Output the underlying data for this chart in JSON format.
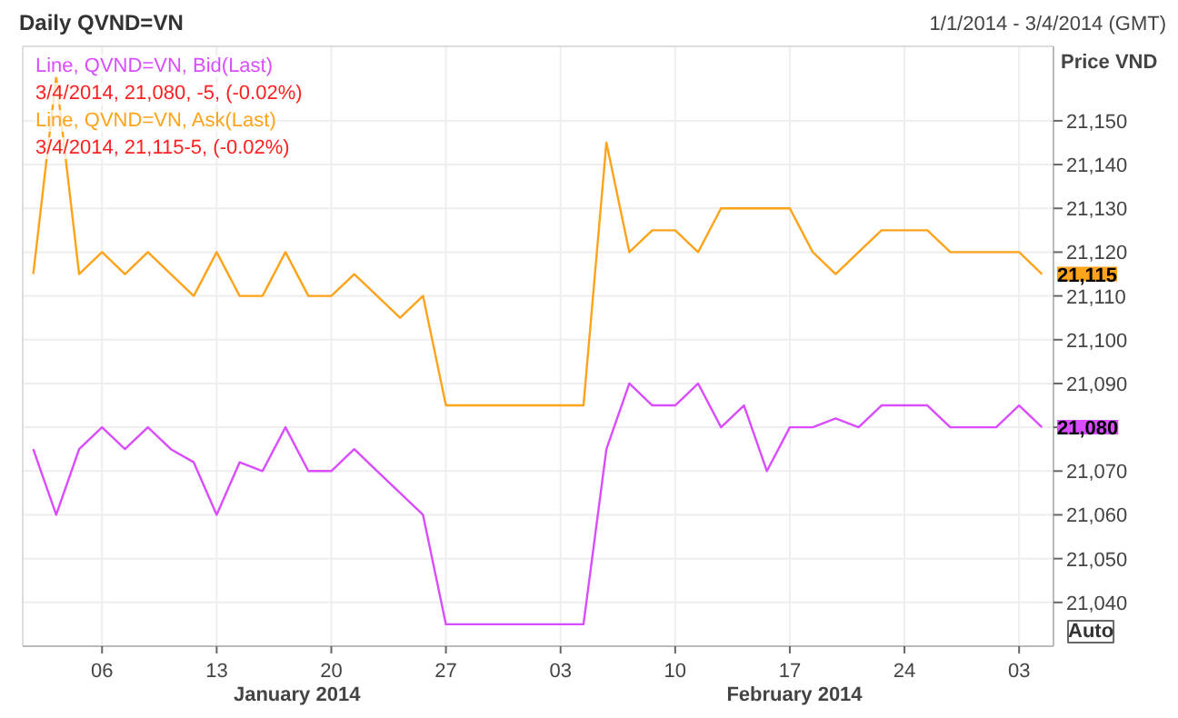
{
  "chart_data": {
    "type": "line",
    "title": "Daily QVND=VN",
    "subtitle": "1/1/2014 - 3/4/2014 (GMT)",
    "ylabel": "Price VND",
    "categories": [
      null,
      null,
      null,
      "06",
      null,
      null,
      null,
      null,
      "13",
      null,
      null,
      null,
      null,
      "20",
      null,
      null,
      null,
      null,
      "27",
      null,
      null,
      null,
      null,
      "03",
      null,
      null,
      null,
      null,
      "10",
      null,
      null,
      null,
      null,
      "17",
      null,
      null,
      null,
      null,
      "24",
      null,
      null,
      null,
      null,
      "03",
      null
    ],
    "series": [
      {
        "name": "Line, QVND=VN, Bid(Last)",
        "color": "#d94cff",
        "values": [
          21075,
          21060,
          21075,
          21080,
          21075,
          21080,
          21075,
          21072,
          21060,
          21072,
          21070,
          21080,
          21070,
          21070,
          21075,
          21070,
          21065,
          21060,
          21035,
          21035,
          21035,
          21035,
          21035,
          21035,
          21035,
          21075,
          21090,
          21085,
          21085,
          21090,
          21080,
          21085,
          21070,
          21080,
          21080,
          21082,
          21080,
          21085,
          21085,
          21085,
          21080,
          21080,
          21080,
          21085,
          21080
        ],
        "value_labels": [
          null,
          null,
          null,
          null,
          null,
          null,
          null,
          null,
          null,
          null,
          null,
          null,
          null,
          null,
          null,
          null,
          null,
          null,
          null,
          null,
          null,
          null,
          null,
          null,
          null,
          null,
          null,
          null,
          null,
          null,
          null,
          null,
          null,
          null,
          null,
          null,
          null,
          null,
          null,
          null,
          null,
          null,
          null,
          null,
          "21,080"
        ]
      },
      {
        "name": "Line, QVND=VN, Ask(Last)",
        "color": "#ffa31a",
        "values": [
          21115,
          21160,
          21115,
          21120,
          21115,
          21120,
          21115,
          21110,
          21120,
          21110,
          21110,
          21120,
          21110,
          21110,
          21115,
          21110,
          21105,
          21110,
          21085,
          21085,
          21085,
          21085,
          21085,
          21085,
          21085,
          21145,
          21120,
          21125,
          21125,
          21120,
          21130,
          21130,
          21130,
          21130,
          21120,
          21115,
          21120,
          21125,
          21125,
          21125,
          21120,
          21120,
          21120,
          21120,
          21115
        ],
        "value_labels": [
          null,
          null,
          null,
          null,
          null,
          null,
          null,
          null,
          null,
          null,
          null,
          null,
          null,
          null,
          null,
          null,
          null,
          null,
          null,
          null,
          null,
          null,
          null,
          null,
          null,
          null,
          null,
          null,
          null,
          null,
          null,
          null,
          null,
          null,
          null,
          null,
          null,
          null,
          null,
          null,
          null,
          null,
          null,
          null,
          "21,115"
        ]
      }
    ],
    "ylim": [
      21030,
      21167
    ],
    "yticks": [
      {
        "value": 21040,
        "label": "21,040"
      },
      {
        "value": 21050,
        "label": "21,050"
      },
      {
        "value": 21060,
        "label": "21,060"
      },
      {
        "value": 21070,
        "label": "21,070"
      },
      {
        "value": 21080,
        "label": null
      },
      {
        "value": 21090,
        "label": "21,090"
      },
      {
        "value": 21100,
        "label": "21,100"
      },
      {
        "value": 21110,
        "label": "21,110"
      },
      {
        "value": 21120,
        "label": "21,120"
      },
      {
        "value": 21130,
        "label": "21,130"
      },
      {
        "value": 21140,
        "label": "21,140"
      },
      {
        "value": 21150,
        "label": "21,150"
      }
    ],
    "annotations": [
      "3/4/2014, 21,080, -5, (-0.02%)",
      "3/4/2014, 21,115-5, (-0.02%)",
      "January 2014",
      "February 2014",
      "Auto"
    ],
    "grid": true,
    "legend": "top left",
    "marker": "none",
    "line_style": "solid"
  }
}
